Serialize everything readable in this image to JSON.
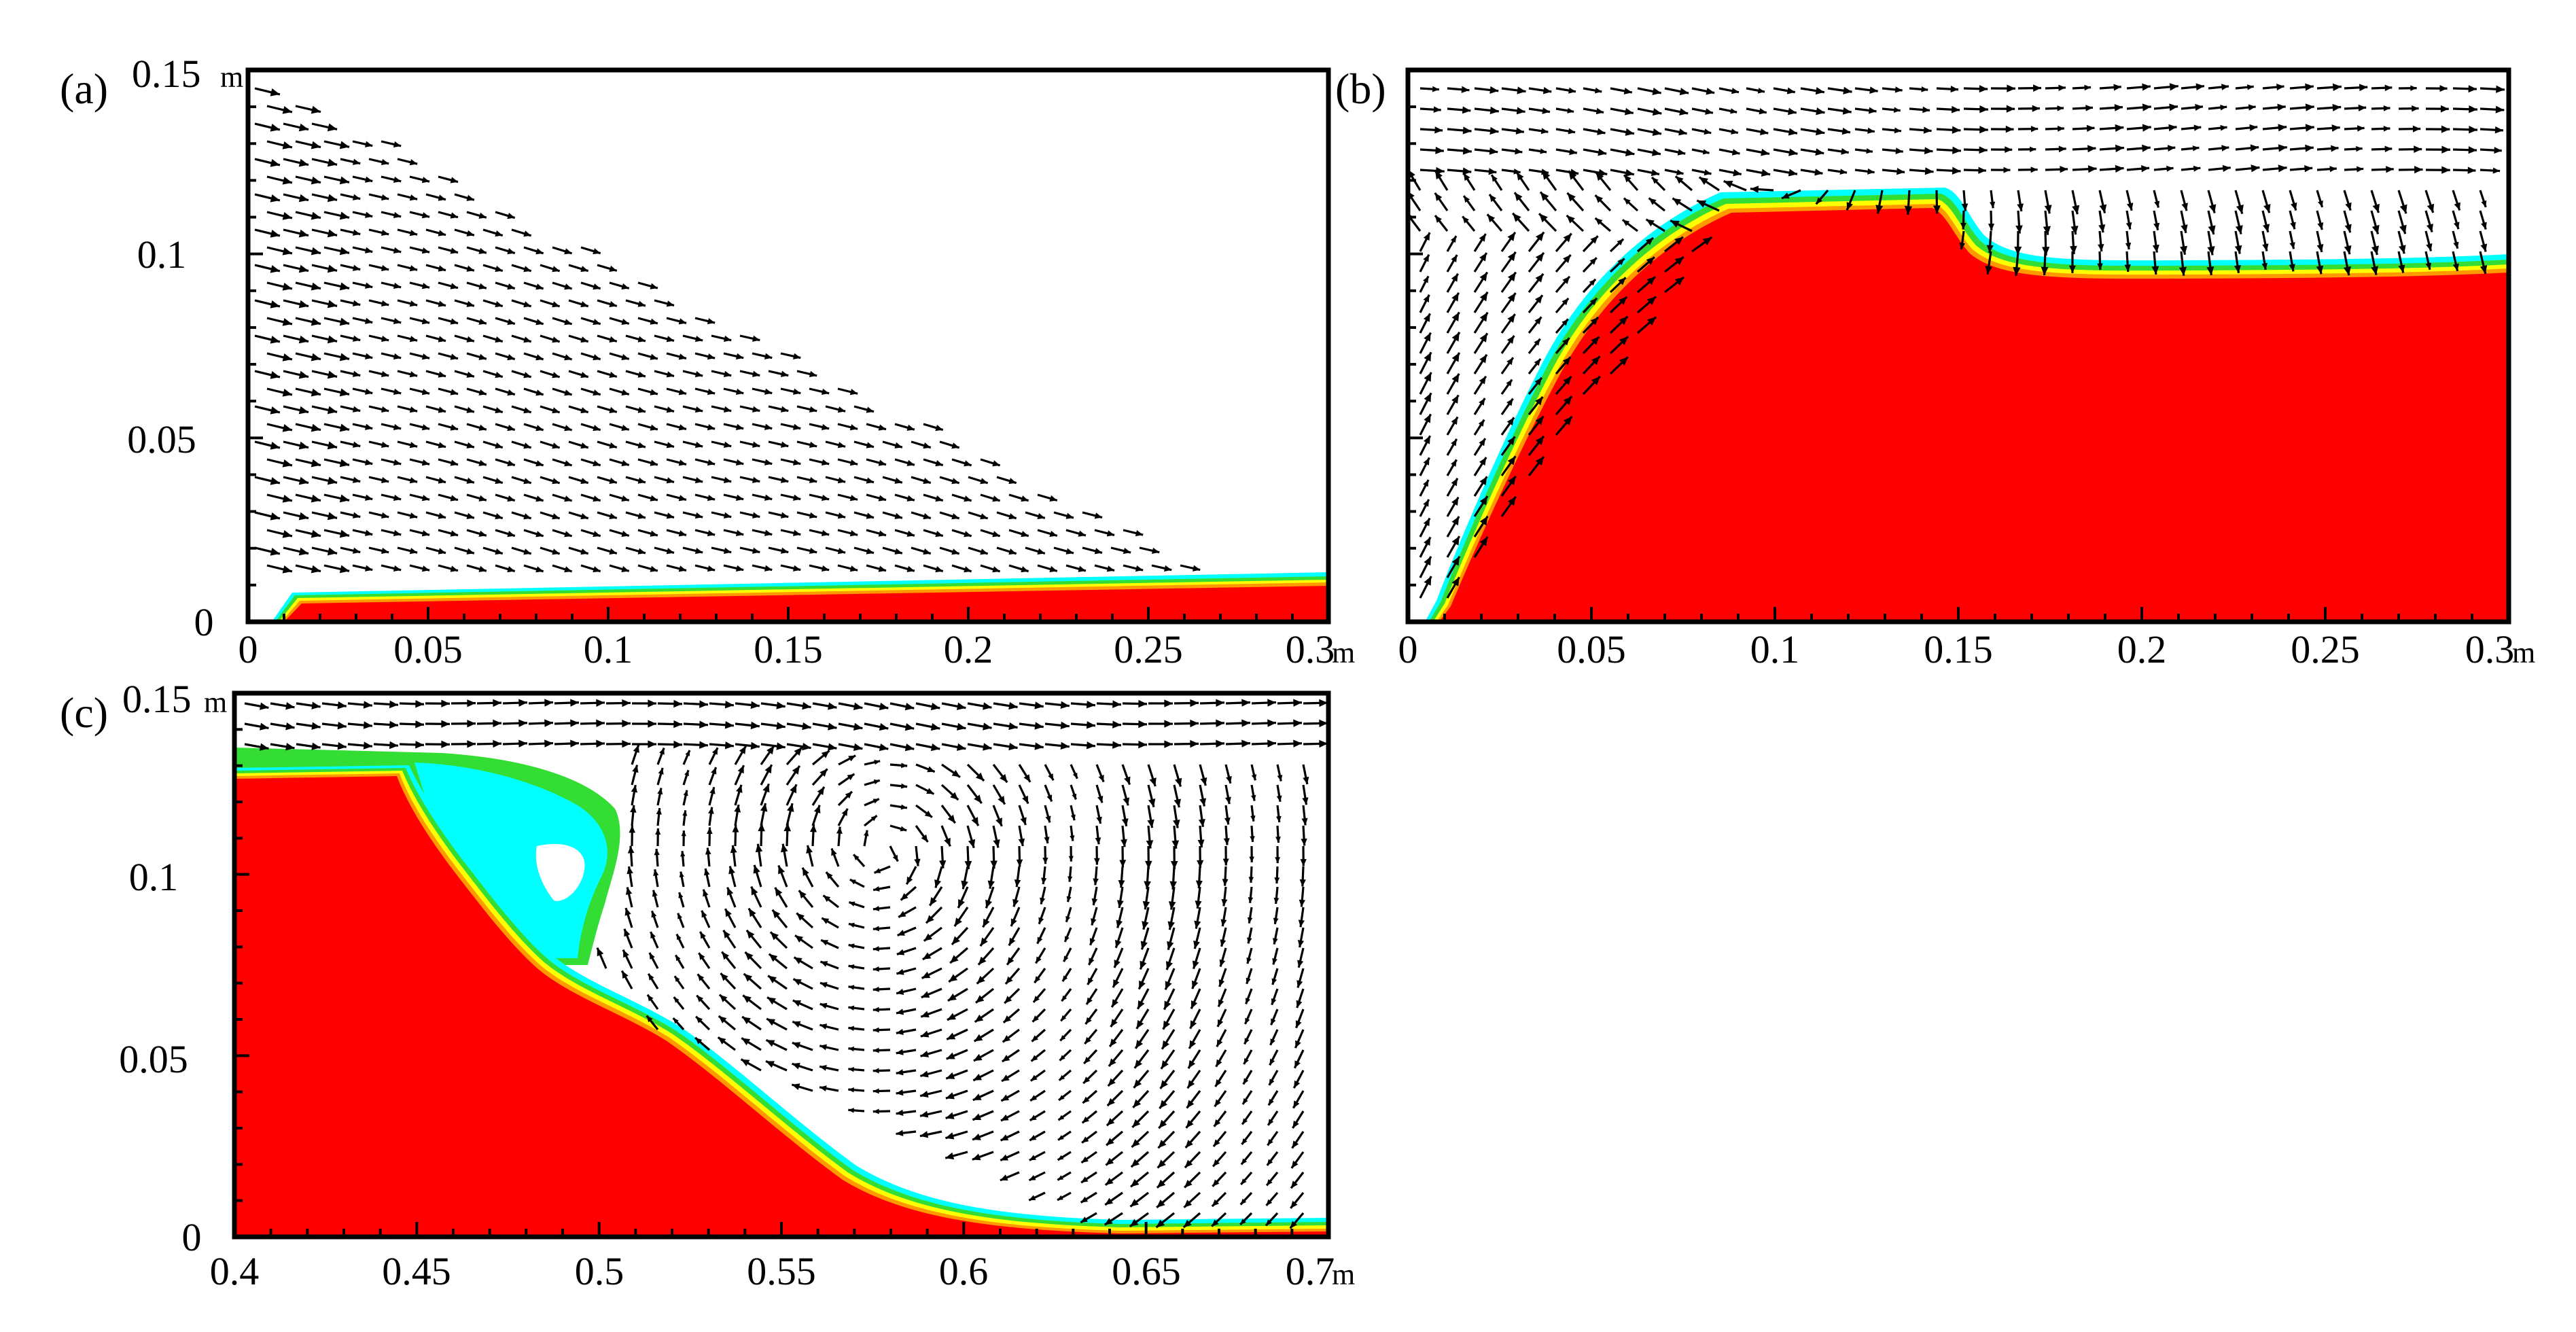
{
  "figure": {
    "colors": {
      "water": "#ff0000",
      "interface_orange": "#ff9900",
      "interface_yellow": "#ffff00",
      "interface_green": "#33dd33",
      "interface_cyan": "#00ffff",
      "air": "#ffffff",
      "arrows": "#000000"
    },
    "panels": [
      {
        "id": "a",
        "label": "(a)",
        "x_unit": "m",
        "y_unit": "m",
        "x_ticks": [
          "0",
          "0.05",
          "0.1",
          "0.15",
          "0.2",
          "0.25",
          "0.3"
        ],
        "y_ticks": [
          "0",
          "0.05",
          "0.1",
          "0.15"
        ]
      },
      {
        "id": "b",
        "label": "(b)",
        "x_unit": "m",
        "x_ticks": [
          "0",
          "0.05",
          "0.1",
          "0.15",
          "0.2",
          "0.25",
          "0.3"
        ]
      },
      {
        "id": "c",
        "label": "(c)",
        "x_unit": "m",
        "y_unit": "m",
        "x_ticks": [
          "0.4",
          "0.45",
          "0.5",
          "0.55",
          "0.6",
          "0.65",
          "0.7"
        ],
        "y_ticks": [
          "0",
          "0.05",
          "0.1",
          "0.15"
        ]
      }
    ]
  }
}
